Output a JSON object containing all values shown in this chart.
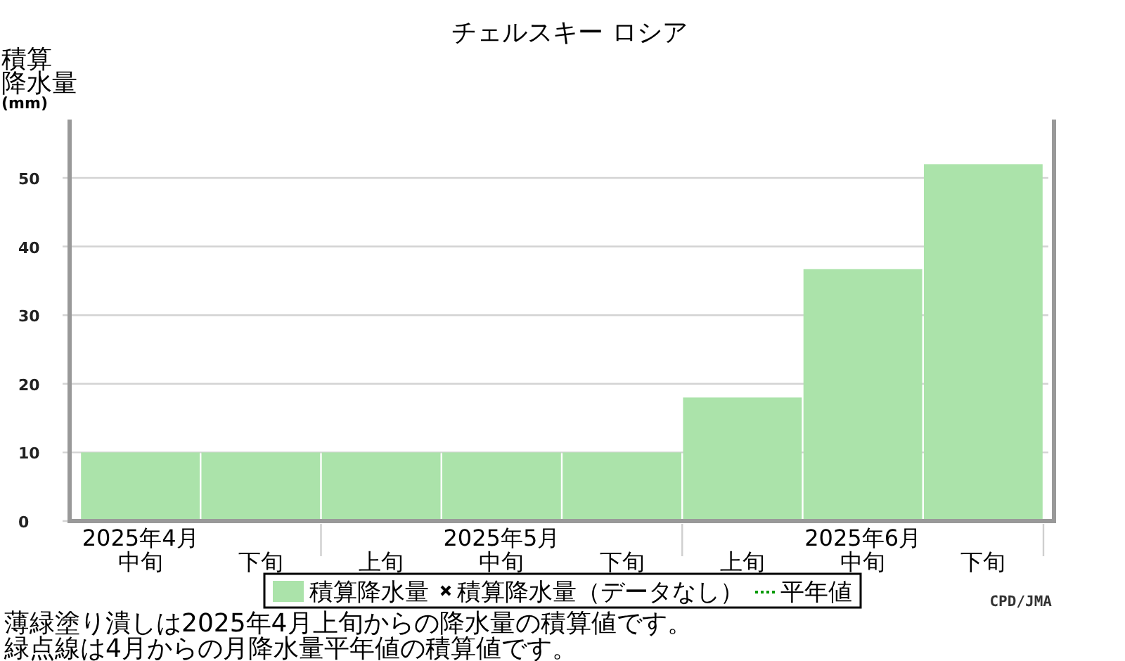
{
  "chart_data": {
    "type": "bar",
    "title": "チェルスキー ロシア",
    "ylabel": "積算降水量(mm)",
    "categories": [
      "中旬",
      "下旬",
      "上旬",
      "中旬",
      "下旬",
      "上旬",
      "中旬",
      "下旬"
    ],
    "series": [
      {
        "name": "積算降水量",
        "color": "#abe3aa",
        "values": [
          10,
          10,
          10,
          10,
          10,
          18,
          36.7,
          52
        ]
      },
      {
        "name": "積算降水量（データなし）",
        "type": "scatter",
        "marker": "cross",
        "color": "#000000",
        "values": [
          null,
          null,
          null,
          null,
          null,
          null,
          null,
          null
        ]
      },
      {
        "name": "平年値",
        "type": "line",
        "line_style": "dotted",
        "color": "#009900",
        "values": [
          null,
          null,
          null,
          null,
          null,
          null,
          null,
          null
        ]
      }
    ],
    "ylim": [
      0,
      58.5
    ],
    "yticks": [
      0,
      10,
      20,
      30,
      40,
      50
    ],
    "grid": "y",
    "legend": "bottom",
    "annotations": [
      "2025年4月",
      "2025年5月",
      "2025年6月",
      "薄緑塗り潰しは2025年4月上旬からの降水量の積算値です。",
      "緑点線は4月からの月降水量平年値の積算値です。",
      "CPD/JMA"
    ]
  }
}
